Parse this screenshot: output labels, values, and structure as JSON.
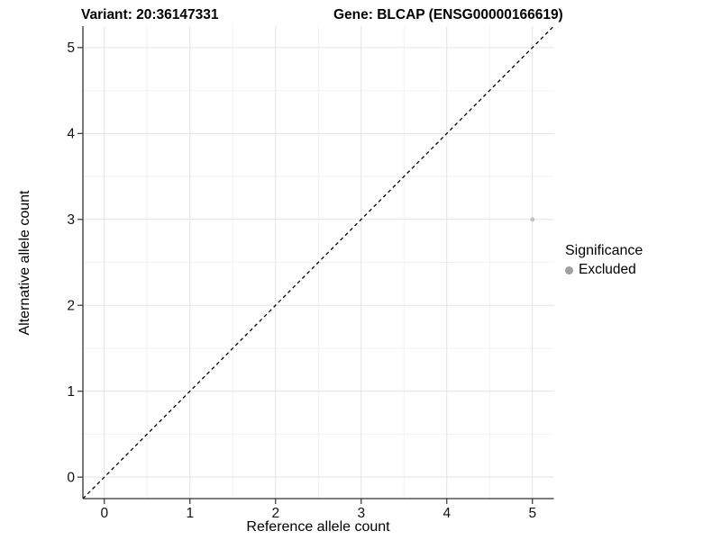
{
  "title": {
    "variant": "Variant: 20:36147331",
    "gene": "Gene: BLCAP (ENSG00000166619)"
  },
  "axes": {
    "x_label": "Reference allele count",
    "y_label": "Alternative allele count"
  },
  "legend": {
    "title": "Significance",
    "items": [
      {
        "label": "Excluded",
        "color": "#9f9f9f"
      }
    ]
  },
  "chart_data": {
    "type": "scatter",
    "title": "Variant: 20:36147331    Gene: BLCAP (ENSG00000166619)",
    "xlabel": "Reference allele count",
    "ylabel": "Alternative allele count",
    "xlim": [
      -0.25,
      5.25
    ],
    "ylim": [
      -0.25,
      5.25
    ],
    "x_ticks": [
      0,
      1,
      2,
      3,
      4,
      5
    ],
    "y_ticks": [
      0,
      1,
      2,
      3,
      4,
      5
    ],
    "x_minor_ticks": [
      0.5,
      1.5,
      2.5,
      3.5,
      4.5
    ],
    "y_minor_ticks": [
      0.5,
      1.5,
      2.5,
      3.5,
      4.5
    ],
    "grid": true,
    "legend_position": "right",
    "series": [
      {
        "name": "Excluded",
        "color": "#bfbfbf",
        "points": [
          {
            "x": 5,
            "y": 3
          }
        ]
      }
    ],
    "reference_line": {
      "type": "identity",
      "from": [
        -0.25,
        -0.25
      ],
      "to": [
        5.25,
        5.25
      ],
      "style": "dashed",
      "color": "#000000"
    },
    "colors": {
      "major_grid": "#e4e4e4",
      "minor_grid": "#f2f2f2",
      "axis_line": "#333333",
      "tick_label": "#111111"
    }
  }
}
